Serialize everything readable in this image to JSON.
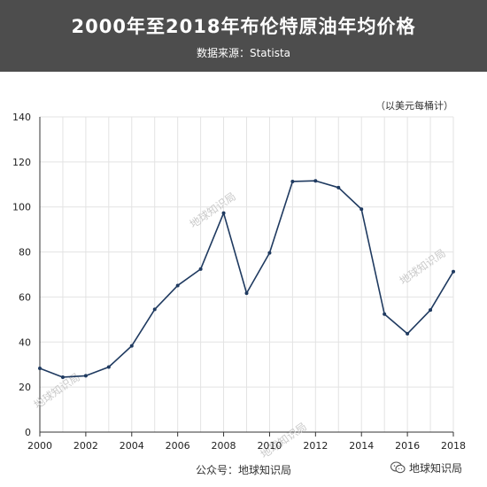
{
  "header": {
    "title": "2000年至2018年布伦特原油年均价格",
    "subtitle": "数据来源：Statista"
  },
  "footer": {
    "source": "公众号：地球知识局",
    "brand": "地球知识局",
    "brand_icon": "wechat-icon"
  },
  "watermarks": [
    "地球知识局",
    "地球知识局",
    "地球知识局",
    "地球知识局"
  ],
  "colors": {
    "header_bg": "#4d4d4d",
    "line": "#1f3a60",
    "grid": "#e3e3e3"
  },
  "chart_data": {
    "type": "line",
    "title": "2000年至2018年布伦特原油年均价格",
    "ylabel": "（以美元每桶计）",
    "xlabel": "",
    "x": [
      2000,
      2001,
      2002,
      2003,
      2004,
      2005,
      2006,
      2007,
      2008,
      2009,
      2010,
      2011,
      2012,
      2013,
      2014,
      2015,
      2016,
      2017,
      2018
    ],
    "series": [
      {
        "values": [
          28.3,
          24.4,
          25.0,
          28.9,
          38.3,
          54.5,
          65.1,
          72.4,
          97.3,
          61.7,
          79.6,
          111.3,
          111.6,
          108.6,
          99.0,
          52.4,
          43.7,
          54.2,
          71.3
        ]
      }
    ],
    "xticks": [
      "2000",
      "2002",
      "2004",
      "2006",
      "2008",
      "2010",
      "2012",
      "2014",
      "2016",
      "2018"
    ],
    "yticks": [
      "0",
      "20",
      "40",
      "60",
      "80",
      "100",
      "120",
      "140"
    ],
    "xlim": [
      2000,
      2018
    ],
    "ylim": [
      0,
      140
    ],
    "grid": true,
    "legend": "none"
  }
}
